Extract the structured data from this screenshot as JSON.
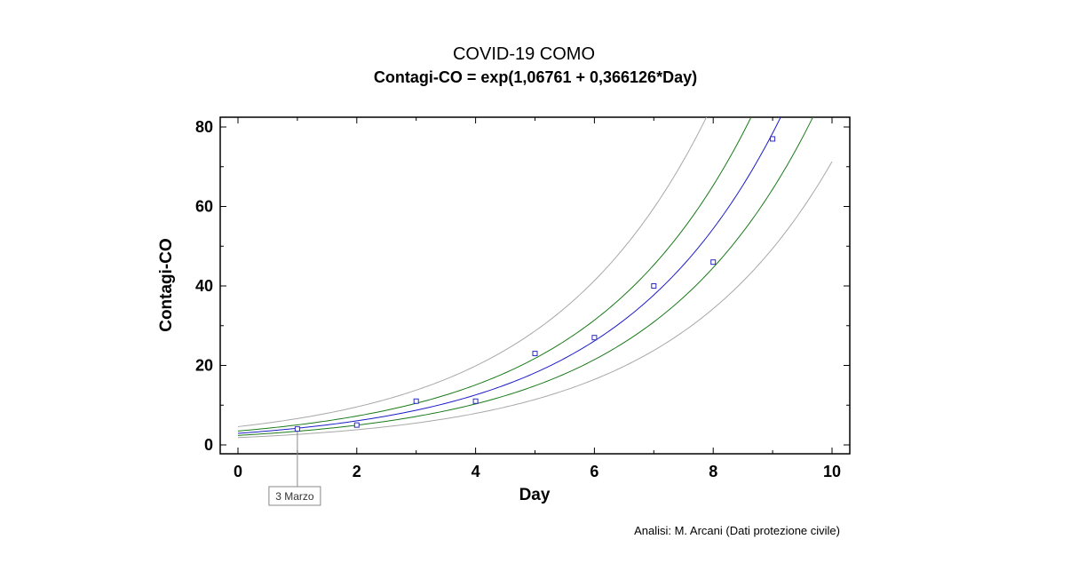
{
  "chart_data": {
    "type": "scatter",
    "title": "COVID-19 COMO",
    "subtitle": "Contagi-CO = exp(1,06761 + 0,366126*Day)",
    "xlabel": "Day",
    "ylabel": "Contagi-CO",
    "xlim": [
      0,
      10
    ],
    "ylim": [
      0,
      80
    ],
    "xticks": [
      "0",
      "2",
      "4",
      "6",
      "8",
      "10"
    ],
    "yticks": [
      "0",
      "20",
      "40",
      "60",
      "80"
    ],
    "grid": false,
    "points": {
      "x": [
        1,
        2,
        3,
        4,
        5,
        6,
        7,
        8,
        9
      ],
      "y": [
        4,
        5,
        11,
        11,
        23,
        27,
        40,
        46,
        77
      ]
    },
    "fit": {
      "intercept": 1.06761,
      "slope": 0.366126
    },
    "inner_band": {
      "lower_factor": 0.82,
      "upper_factor": 1.2
    },
    "outer_band": {
      "lower_factor": 0.63,
      "upper_factor": 1.58
    },
    "annotation": {
      "x": 1,
      "text": "3 Marzo"
    },
    "colors": {
      "points": "#2b2bbf",
      "fit": "#1c1cc8",
      "inner_band": "#1a7a1a",
      "outer_band": "#a8a8a8"
    }
  },
  "credit": "Analisi: M. Arcani (Dati protezione civile)"
}
